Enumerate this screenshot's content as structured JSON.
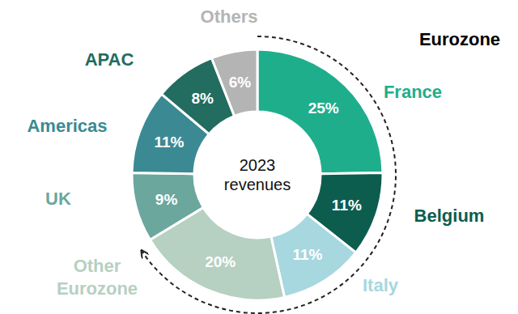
{
  "chart_data": {
    "type": "pie",
    "title": "2023 revenues",
    "categories": [
      "France",
      "Belgium",
      "Italy",
      "Other Eurozone",
      "UK",
      "Americas",
      "APAC",
      "Others"
    ],
    "values": [
      25,
      11,
      11,
      20,
      9,
      11,
      8,
      6
    ],
    "value_labels": [
      "25%",
      "11%",
      "11%",
      "20%",
      "9%",
      "11%",
      "8%",
      "6%"
    ],
    "colors": [
      "#1fae8c",
      "#0d5d4f",
      "#a7d7df",
      "#b6d0c1",
      "#6ba79d",
      "#3b8a93",
      "#236c60",
      "#b4b4b4"
    ],
    "data_labels": true,
    "annotations": [
      {
        "text": "Eurozone",
        "categories": [
          "France",
          "Belgium",
          "Italy",
          "Other Eurozone"
        ]
      }
    ]
  }
}
